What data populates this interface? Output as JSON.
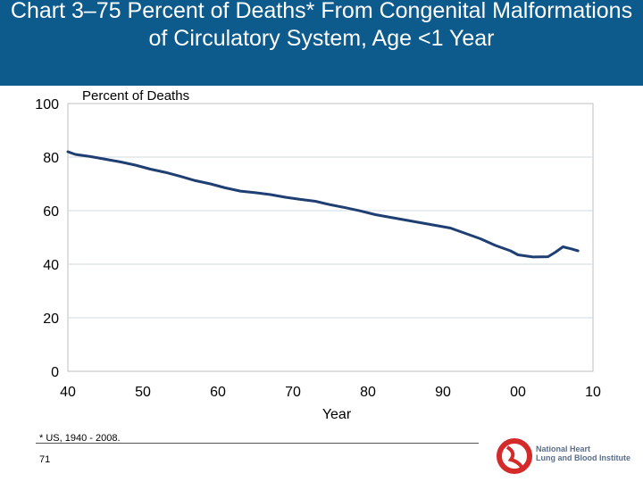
{
  "header": {
    "title": "Chart 3–75 Percent of Deaths* From Congenital Malformations of Circulatory System, Age <1 Year"
  },
  "footer": {
    "footnote": "* US, 1940 - 2008.",
    "page_number": "71",
    "logo_text_line1": "National Heart",
    "logo_text_line2": "Lung and Blood Institute"
  },
  "colors": {
    "title_bar": "#0d5a8c",
    "line": "#1f3f73",
    "logo": "#d42a2a"
  },
  "chart_data": {
    "type": "line",
    "title": "",
    "ylabel": "Percent of Deaths",
    "xlabel": "Year",
    "xlim": [
      1940,
      2010
    ],
    "ylim": [
      0,
      100
    ],
    "x_ticks": [
      1940,
      1950,
      1960,
      1970,
      1980,
      1990,
      2000,
      2010
    ],
    "x_tick_labels": [
      "40",
      "50",
      "60",
      "70",
      "80",
      "90",
      "00",
      "10"
    ],
    "y_ticks": [
      0,
      20,
      40,
      60,
      80,
      100
    ],
    "y_tick_labels": [
      "0",
      "20",
      "40",
      "60",
      "80",
      "100"
    ],
    "grid": true,
    "series": [
      {
        "x": [
          1940,
          1941,
          1943,
          1945,
          1947,
          1949,
          1951,
          1953,
          1955,
          1957,
          1959,
          1961,
          1963,
          1965,
          1967,
          1969,
          1971,
          1973,
          1975,
          1977,
          1979,
          1981,
          1983,
          1985,
          1987,
          1989,
          1991,
          1993,
          1995,
          1997,
          1999,
          2000,
          2002,
          2004,
          2005,
          2006,
          2007,
          2008
        ],
        "y": [
          82,
          81,
          80.2,
          79.2,
          78.2,
          77,
          75.5,
          74.3,
          72.8,
          71.2,
          70,
          68.5,
          67.3,
          66.7,
          66,
          65,
          64.2,
          63.5,
          62.2,
          61.1,
          59.9,
          58.5,
          57.5,
          56.5,
          55.5,
          54.5,
          53.5,
          51.5,
          49.5,
          47,
          45,
          43.5,
          42.7,
          42.8,
          44.5,
          46.5,
          45.8,
          45
        ]
      }
    ]
  }
}
